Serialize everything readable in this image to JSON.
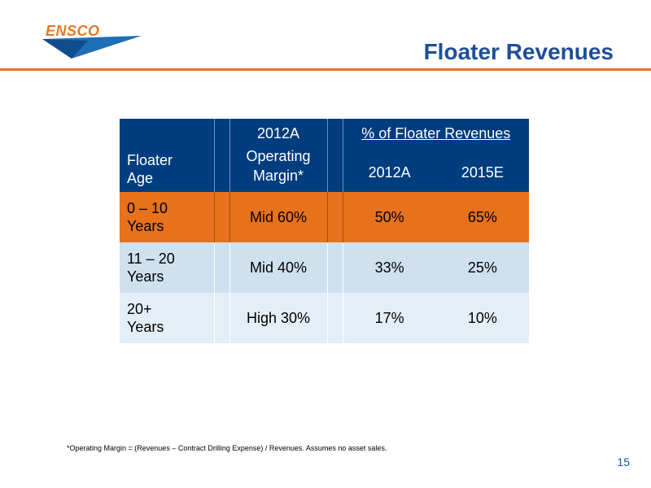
{
  "header": {
    "logo_text": "ENSCO",
    "title": "Floater Revenues"
  },
  "colors": {
    "brand_blue": "#1f4e96",
    "header_navy": "#003d7e",
    "accent_orange": "#e8711c",
    "row_light_blue": "#cfe0ef",
    "row_lighter_blue": "#e4eef7"
  },
  "table": {
    "header": {
      "age_line1": "Floater",
      "age_line2": "Age",
      "margin_line1": "2012A",
      "margin_line2": "Operating",
      "margin_line3": "Margin*",
      "pct_title": "% of Floater Revenues",
      "pct_year1": "2012A",
      "pct_year2": "2015E"
    },
    "rows": [
      {
        "age_line1": "0 – 10",
        "age_line2": "Years",
        "margin": "Mid 60%",
        "pct_2012a": "50%",
        "pct_2015e": "65%"
      },
      {
        "age_line1": "11 – 20",
        "age_line2": "Years",
        "margin": "Mid 40%",
        "pct_2012a": "33%",
        "pct_2015e": "25%"
      },
      {
        "age_line1": "20+",
        "age_line2": "Years",
        "margin": "High 30%",
        "pct_2012a": "17%",
        "pct_2015e": "10%"
      }
    ]
  },
  "footnote": "*Operating Margin = (Revenues – Contract Drilling Expense) / Revenues.  Assumes no asset sales.",
  "page_number": "15"
}
